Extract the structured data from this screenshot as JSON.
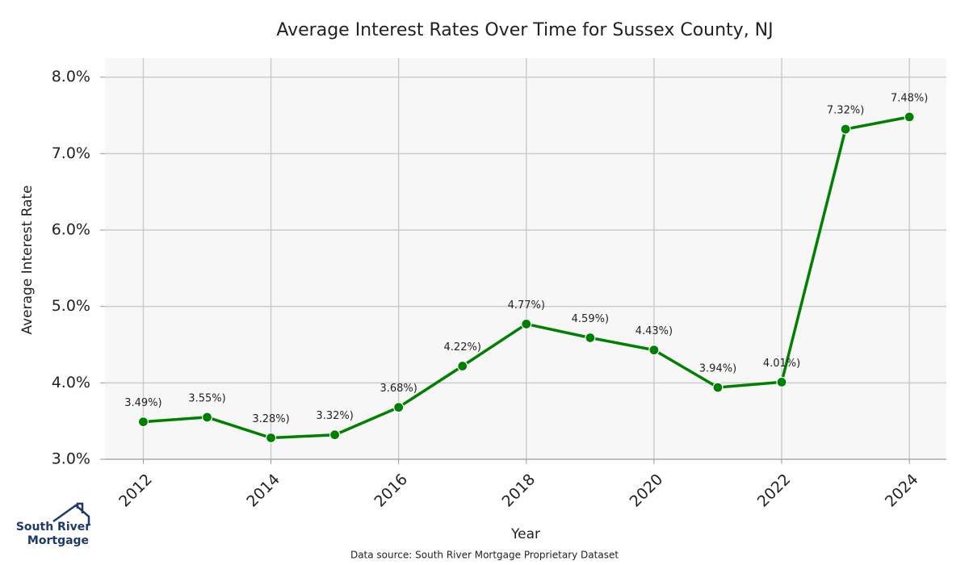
{
  "chart_data": {
    "type": "line",
    "title": "Average Interest Rates Over Time for Sussex County, NJ",
    "x_label": "Year",
    "y_label": "Average Interest Rate",
    "x": [
      2012,
      2013,
      2014,
      2015,
      2016,
      2017,
      2018,
      2019,
      2020,
      2021,
      2022,
      2023,
      2024
    ],
    "series": [
      {
        "name": "Average Interest Rate",
        "color": "#008000",
        "values": [
          3.49,
          3.55,
          3.28,
          3.32,
          3.68,
          4.22,
          4.77,
          4.59,
          4.43,
          3.94,
          4.01,
          7.32,
          7.48
        ],
        "value_labels": [
          "3.49%)",
          "3.55%)",
          "3.28%)",
          "3.32%)",
          "3.68%)",
          "4.22%)",
          "4.77%)",
          "4.59%)",
          "4.43%)",
          "3.94%)",
          "4.01%)",
          "7.32%)",
          "7.48%)"
        ]
      }
    ],
    "xlim": [
      2011.4,
      2024.58
    ],
    "xticks": [
      2012,
      2014,
      2016,
      2018,
      2020,
      2022,
      2024
    ],
    "ylim": [
      3.0,
      8.25
    ],
    "yticks": [
      {
        "value": 3,
        "label": "3.0%"
      },
      {
        "value": 4,
        "label": "4.0%"
      },
      {
        "value": 5,
        "label": "5.0%"
      },
      {
        "value": 6,
        "label": "6.0%"
      },
      {
        "value": 7,
        "label": "7.0%"
      },
      {
        "value": 8,
        "label": "8.0%"
      }
    ],
    "grid": true,
    "source": "Data source: South River Mortgage Proprietary Dataset"
  },
  "logo": {
    "line1": "South River",
    "line2": "Mortgage"
  }
}
